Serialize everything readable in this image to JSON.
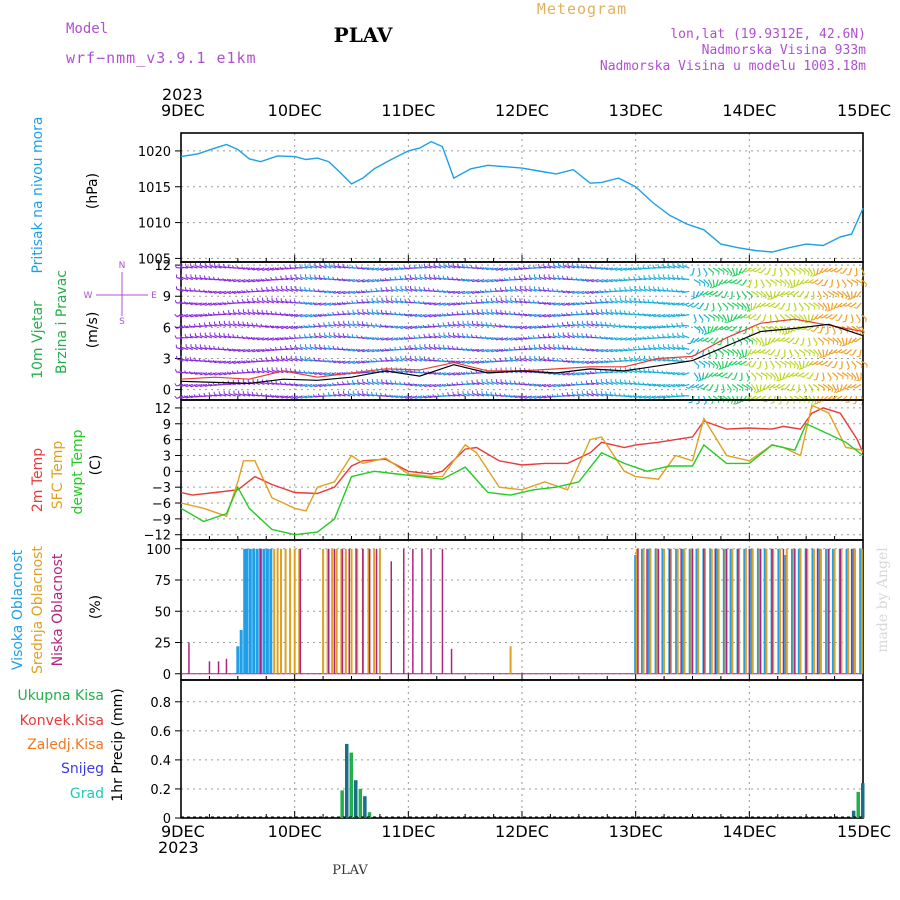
{
  "header": {
    "model_label": "Model",
    "model_name": "wrf−nmm_v3.9.1  e1km",
    "title": "PLAV",
    "subtitle": "Meteogram",
    "location": "lon,lat (19.9312E, 42.6N)",
    "altitude": "Nadmorska Visina 933m",
    "model_altitude": "Nadmorska Visina u modelu 1003.18m",
    "footer_station": "PLAV",
    "credit": "made by Angel"
  },
  "colors": {
    "pressure": "#1ea0e6",
    "temp2m": "#e83a3a",
    "sfc_temp": "#e0a020",
    "dewpt": "#22cc22",
    "high_cloud": "#1e9fe8",
    "mid_cloud": "#e0a020",
    "low_cloud": "#b0237f",
    "total_precip": "#22b04a",
    "convective": "#e83a3a",
    "frozen": "#f07820",
    "snow": "#3a3ae0",
    "graupel": "#20c8b8",
    "purple_text": "#b050d0",
    "orange_text": "#e0b060"
  },
  "chart_data": [
    {
      "type": "line",
      "panel": "pressure",
      "ylabel_1": "Pritisak na nivou mora",
      "ylabel_2": "(hPa)",
      "year": "2023",
      "x_ticks": [
        "9DEC",
        "10DEC",
        "11DEC",
        "12DEC",
        "13DEC",
        "14DEC",
        "15DEC"
      ],
      "y_ticks": [
        "1005",
        "1010",
        "1015",
        "1020"
      ],
      "ylim": [
        1004.5,
        1022.5
      ],
      "grid": true,
      "series": [
        {
          "name": "Pritisak na nivou mora",
          "x": [
            0,
            0.15,
            0.3,
            0.4,
            0.5,
            0.6,
            0.7,
            0.85,
            1.0,
            1.1,
            1.2,
            1.3,
            1.4,
            1.5,
            1.6,
            1.7,
            1.85,
            2.0,
            2.1,
            2.2,
            2.3,
            2.4,
            2.55,
            2.7,
            2.85,
            3.0,
            3.15,
            3.3,
            3.45,
            3.6,
            3.7,
            3.85,
            4.0,
            4.15,
            4.3,
            4.45,
            4.6,
            4.75,
            4.9,
            5.05,
            5.2,
            5.35,
            5.5,
            5.65,
            5.8,
            5.9,
            6.0
          ],
          "y": [
            1019.2,
            1019.6,
            1020.4,
            1020.9,
            1020.2,
            1018.9,
            1018.5,
            1019.3,
            1019.2,
            1018.8,
            1019.0,
            1018.5,
            1017.0,
            1015.4,
            1016.2,
            1017.5,
            1018.8,
            1020.0,
            1020.4,
            1021.3,
            1020.6,
            1016.2,
            1017.5,
            1018.0,
            1017.8,
            1017.6,
            1017.2,
            1016.8,
            1017.4,
            1015.5,
            1015.6,
            1016.2,
            1015.0,
            1012.8,
            1011.0,
            1009.8,
            1009.0,
            1007.0,
            1006.5,
            1006.1,
            1005.9,
            1006.5,
            1007.0,
            1006.8,
            1008.0,
            1008.4,
            1012.0
          ]
        }
      ]
    },
    {
      "type": "line",
      "panel": "wind",
      "ylabel_1": "10m Vjetar",
      "ylabel_2": "Brzina i Pravac",
      "ylabel_3": "(m/s)",
      "compass": {
        "n": "N",
        "s": "S",
        "e": "E",
        "w": "W"
      },
      "y_ticks": [
        "0",
        "3",
        "6",
        "9",
        "12"
      ],
      "ylim": [
        -1,
        12.3
      ],
      "grid": true,
      "series": [
        {
          "name": "wind_speed",
          "x": [
            0,
            0.3,
            0.6,
            0.9,
            1.2,
            1.5,
            1.8,
            2.1,
            2.4,
            2.7,
            3.0,
            3.3,
            3.6,
            3.9,
            4.2,
            4.5,
            4.8,
            5.1,
            5.4,
            5.7,
            6.0
          ],
          "y": [
            0.8,
            0.7,
            0.6,
            1.0,
            0.9,
            1.2,
            1.8,
            1.3,
            2.4,
            1.6,
            1.8,
            1.6,
            2.0,
            1.8,
            2.3,
            2.8,
            4.2,
            5.6,
            5.9,
            6.3,
            5.2
          ]
        },
        {
          "name": "gust",
          "x": [
            0,
            0.3,
            0.6,
            0.9,
            1.2,
            1.5,
            1.8,
            2.1,
            2.4,
            2.7,
            3.0,
            3.3,
            3.6,
            3.9,
            4.2,
            4.5,
            4.8,
            5.1,
            5.4,
            5.7,
            6.0
          ],
          "y": [
            1.0,
            1.2,
            1.0,
            1.8,
            1.2,
            1.6,
            2.0,
            1.9,
            2.6,
            1.8,
            1.8,
            2.0,
            2.2,
            2.2,
            3.0,
            3.2,
            5.0,
            6.4,
            6.8,
            6.2,
            5.6
          ]
        }
      ]
    },
    {
      "type": "line",
      "panel": "temperature",
      "ylabel_1": "2m Temp",
      "ylabel_2": "SFC Temp",
      "ylabel_3": "dewpt Temp",
      "ylabel_4": "(C)",
      "y_ticks": [
        "−12",
        "−9",
        "−6",
        "−3",
        "0",
        "3",
        "6",
        "9",
        "12"
      ],
      "ylim": [
        -13,
        13.5
      ],
      "grid": true,
      "series": [
        {
          "name": "2m Temp",
          "x": [
            0,
            0.1,
            0.3,
            0.5,
            0.65,
            0.8,
            1.0,
            1.2,
            1.35,
            1.5,
            1.6,
            1.8,
            2.0,
            2.2,
            2.3,
            2.5,
            2.6,
            2.8,
            3.0,
            3.2,
            3.4,
            3.6,
            3.7,
            3.9,
            4.0,
            4.2,
            4.35,
            4.5,
            4.6,
            4.8,
            5.0,
            5.2,
            5.3,
            5.45,
            5.55,
            5.65,
            5.8,
            5.95,
            6.0
          ],
          "y": [
            -4,
            -4.5,
            -4,
            -3.5,
            -1,
            -2.5,
            -4,
            -4.2,
            -3,
            1,
            2,
            2.3,
            0,
            -0.5,
            0,
            4.2,
            4.5,
            2,
            1.2,
            1.5,
            1.5,
            3.5,
            5.5,
            4.5,
            5,
            5.5,
            6,
            6.5,
            9.5,
            8,
            8.2,
            8,
            8.5,
            8,
            11,
            12,
            11,
            6,
            3.5
          ]
        },
        {
          "name": "SFC Temp",
          "x": [
            0,
            0.2,
            0.4,
            0.5,
            0.55,
            0.65,
            0.8,
            1.0,
            1.1,
            1.2,
            1.35,
            1.5,
            1.6,
            1.8,
            2.0,
            2.2,
            2.3,
            2.5,
            2.6,
            2.8,
            3.0,
            3.2,
            3.4,
            3.6,
            3.7,
            3.9,
            4.0,
            4.2,
            4.35,
            4.5,
            4.6,
            4.8,
            5.0,
            5.2,
            5.3,
            5.45,
            5.55,
            5.7,
            5.85,
            6.0
          ],
          "y": [
            -6,
            -7,
            -8.5,
            -2,
            2,
            2,
            -5,
            -7,
            -7.5,
            -3,
            -2,
            3,
            1.5,
            2.5,
            -0.5,
            -1,
            -1,
            5,
            3.5,
            -3,
            -3.5,
            -2,
            -3.5,
            6,
            6.5,
            0,
            -1,
            -1.5,
            3,
            2,
            10,
            3,
            2,
            5,
            4.5,
            3,
            12.5,
            11,
            4.5,
            4
          ]
        },
        {
          "name": "dewpt Temp",
          "x": [
            0,
            0.2,
            0.4,
            0.5,
            0.6,
            0.8,
            1.0,
            1.2,
            1.35,
            1.5,
            1.7,
            1.9,
            2.1,
            2.3,
            2.5,
            2.7,
            2.9,
            3.1,
            3.3,
            3.5,
            3.7,
            3.9,
            4.1,
            4.3,
            4.5,
            4.6,
            4.8,
            5.0,
            5.2,
            5.4,
            5.5,
            5.7,
            5.85,
            6.0
          ],
          "y": [
            -7,
            -9.5,
            -8,
            -3,
            -7,
            -11,
            -12,
            -11.5,
            -9,
            -1,
            0,
            -0.5,
            -1,
            -1.5,
            0.8,
            -4,
            -4.5,
            -3.5,
            -3,
            -2,
            3.5,
            1.5,
            0,
            1,
            1,
            5,
            1.5,
            1.5,
            5,
            4,
            9,
            7,
            5.5,
            3
          ]
        }
      ]
    },
    {
      "type": "bar",
      "panel": "clouds",
      "ylabel_1": "Visoka Oblacnost",
      "ylabel_2": "Srednja Oblacnost",
      "ylabel_3": "Niska Oblacnost",
      "ylabel_4": "(%)",
      "y_ticks": [
        "0",
        "25",
        "50",
        "75",
        "100"
      ],
      "ylim": [
        -5,
        107
      ],
      "grid": true,
      "series": [
        {
          "name": "Visoka Oblacnost",
          "x": [
            0.5,
            0.53,
            0.56,
            0.58,
            0.61,
            0.64,
            0.67,
            0.7,
            0.73,
            0.76,
            0.79,
            4.0,
            4.06,
            4.12,
            4.18,
            4.24,
            4.3,
            4.36,
            4.42,
            4.48,
            4.54,
            4.6,
            4.66,
            4.72,
            4.78,
            4.84,
            4.9,
            4.96,
            5.02,
            5.08,
            5.14,
            5.2,
            5.26,
            5.32,
            5.38,
            5.44,
            5.5,
            5.56,
            5.62,
            5.68,
            5.74,
            5.8,
            5.86,
            5.92,
            5.98
          ],
          "y": [
            22,
            35,
            100,
            100,
            100,
            100,
            100,
            100,
            100,
            100,
            100,
            95,
            100,
            100,
            100,
            100,
            100,
            100,
            100,
            100,
            100,
            100,
            100,
            100,
            100,
            100,
            100,
            100,
            100,
            100,
            100,
            100,
            100,
            95,
            100,
            100,
            100,
            100,
            100,
            100,
            100,
            100,
            100,
            100,
            100
          ]
        },
        {
          "name": "Srednja Oblacnost",
          "x": [
            0.82,
            0.85,
            0.88,
            0.92,
            0.96,
            1.0,
            1.04,
            1.25,
            1.29,
            1.33,
            1.37,
            1.41,
            1.45,
            1.5,
            1.55,
            1.6,
            1.65,
            1.7,
            1.75,
            2.9,
            4.01,
            4.07,
            4.13,
            4.19,
            4.25,
            4.31,
            4.37,
            4.43,
            4.49,
            4.55,
            4.61,
            4.67,
            4.73,
            4.79,
            4.85,
            4.91,
            4.97,
            5.03,
            5.09,
            5.15,
            5.21,
            5.27,
            5.33,
            5.39,
            5.45,
            5.51,
            5.57,
            5.63,
            5.69,
            5.75,
            5.81,
            5.87,
            5.93,
            5.99
          ],
          "y": [
            100,
            100,
            100,
            100,
            100,
            100,
            100,
            100,
            100,
            100,
            100,
            100,
            100,
            100,
            100,
            100,
            100,
            100,
            100,
            22,
            100,
            100,
            100,
            100,
            100,
            100,
            100,
            100,
            100,
            100,
            100,
            100,
            100,
            100,
            100,
            100,
            100,
            100,
            100,
            100,
            100,
            100,
            100,
            100,
            100,
            100,
            100,
            100,
            100,
            100,
            100,
            100,
            100,
            100
          ]
        },
        {
          "name": "Niska Oblacnost",
          "x": [
            0.07,
            0.25,
            0.33,
            0.4,
            0.7,
            1.05,
            1.3,
            1.35,
            1.42,
            1.48,
            1.54,
            1.6,
            1.66,
            1.72,
            1.85,
            1.96,
            2.04,
            2.12,
            2.2,
            2.3,
            2.38,
            4.02,
            4.1,
            4.2,
            4.3,
            4.4,
            4.5,
            4.6,
            4.7,
            4.8,
            4.9,
            5.0,
            5.1,
            5.2,
            5.3,
            5.4,
            5.5,
            5.6,
            5.7,
            5.8,
            5.9
          ],
          "y": [
            25,
            10,
            10,
            12,
            100,
            100,
            100,
            100,
            100,
            100,
            100,
            100,
            100,
            100,
            90,
            100,
            100,
            100,
            100,
            100,
            20,
            100,
            100,
            100,
            100,
            100,
            100,
            100,
            100,
            100,
            100,
            100,
            100,
            100,
            100,
            100,
            100,
            100,
            100,
            100,
            100
          ]
        }
      ]
    },
    {
      "type": "bar",
      "panel": "precipitation",
      "ylabel": "1hr Precip (mm)",
      "legend": [
        "Ukupna Kisa",
        "Konvek.Kisa",
        "Zaledj.Kisa",
        "Snijeg",
        "Grad"
      ],
      "y_ticks": [
        "0",
        "0.2",
        "0.4",
        "0.6",
        "0.8"
      ],
      "ylim": [
        0,
        0.95
      ],
      "grid": true,
      "series": [
        {
          "name": "Ukupna Kisa",
          "x": [
            1.42,
            1.46,
            1.5,
            1.54,
            1.58,
            1.62,
            1.66,
            5.92,
            5.96,
            6.0
          ],
          "y": [
            0.19,
            0.51,
            0.45,
            0.26,
            0.2,
            0.15,
            0.04,
            0.05,
            0.18,
            0.24
          ]
        }
      ]
    }
  ]
}
